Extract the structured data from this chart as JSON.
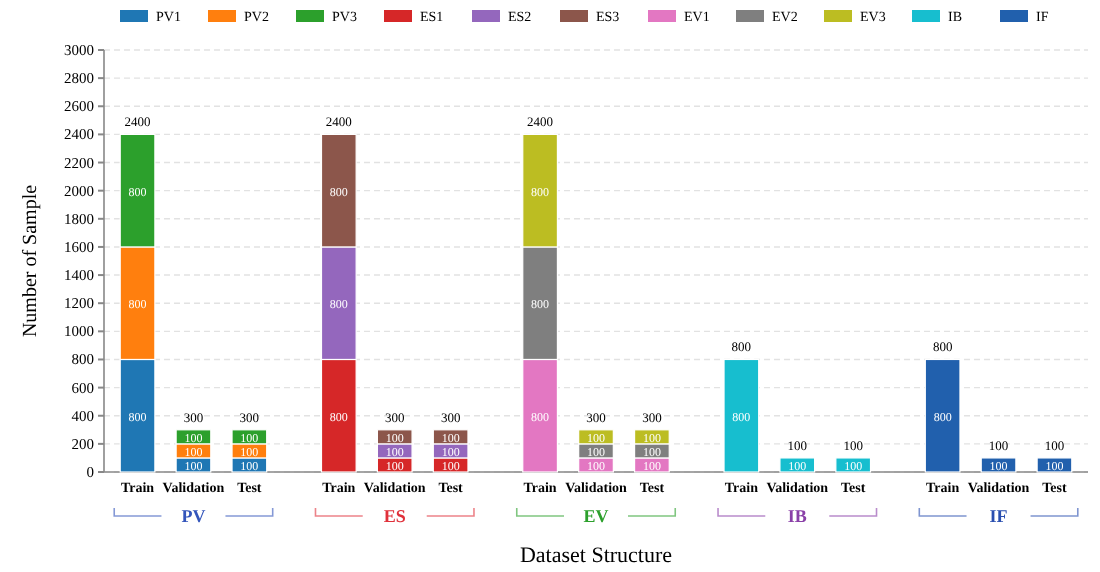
{
  "chart_data": {
    "type": "bar",
    "stacked": true,
    "xlabel": "Dataset Structure",
    "ylabel": "Number of Sample",
    "categories": [
      "Train",
      "Validation",
      "Test",
      "Train",
      "Validation",
      "Test",
      "Train",
      "Validation",
      "Test",
      "Train",
      "Validation",
      "Test",
      "Train",
      "Validation",
      "Test"
    ],
    "series": [
      {
        "name": "PV1",
        "color": "#1f77b4",
        "values": [
          800,
          100,
          100,
          null,
          null,
          null,
          null,
          null,
          null,
          null,
          null,
          null,
          null,
          null,
          null
        ]
      },
      {
        "name": "PV2",
        "color": "#ff7f0e",
        "values": [
          800,
          100,
          100,
          null,
          null,
          null,
          null,
          null,
          null,
          null,
          null,
          null,
          null,
          null,
          null
        ]
      },
      {
        "name": "PV3",
        "color": "#2ca02c",
        "values": [
          800,
          100,
          100,
          null,
          null,
          null,
          null,
          null,
          null,
          null,
          null,
          null,
          null,
          null,
          null
        ]
      },
      {
        "name": "ES1",
        "color": "#d62728",
        "values": [
          null,
          null,
          null,
          800,
          100,
          100,
          null,
          null,
          null,
          null,
          null,
          null,
          null,
          null,
          null
        ]
      },
      {
        "name": "ES2",
        "color": "#9467bd",
        "values": [
          null,
          null,
          null,
          800,
          100,
          100,
          null,
          null,
          null,
          null,
          null,
          null,
          null,
          null,
          null
        ]
      },
      {
        "name": "ES3",
        "color": "#8c564b",
        "values": [
          null,
          null,
          null,
          800,
          100,
          100,
          null,
          null,
          null,
          null,
          null,
          null,
          null,
          null,
          null
        ]
      },
      {
        "name": "EV1",
        "color": "#e377c2",
        "values": [
          null,
          null,
          null,
          null,
          null,
          null,
          800,
          100,
          100,
          null,
          null,
          null,
          null,
          null,
          null
        ]
      },
      {
        "name": "EV2",
        "color": "#7f7f7f",
        "values": [
          null,
          null,
          null,
          null,
          null,
          null,
          800,
          100,
          100,
          null,
          null,
          null,
          null,
          null,
          null
        ]
      },
      {
        "name": "EV3",
        "color": "#bcbd22",
        "values": [
          null,
          null,
          null,
          null,
          null,
          null,
          800,
          100,
          100,
          null,
          null,
          null,
          null,
          null,
          null
        ]
      },
      {
        "name": "IB",
        "color": "#17becf",
        "values": [
          null,
          null,
          null,
          null,
          null,
          null,
          null,
          null,
          null,
          800,
          100,
          100,
          null,
          null,
          null
        ]
      },
      {
        "name": "IF",
        "color": "#2160ad",
        "values": [
          null,
          null,
          null,
          null,
          null,
          null,
          null,
          null,
          null,
          null,
          null,
          null,
          800,
          100,
          100
        ]
      }
    ],
    "totals": [
      "2400",
      "300",
      "300",
      "2400",
      "300",
      "300",
      "2400",
      "300",
      "300",
      "800",
      "100",
      "100",
      "800",
      "100",
      "100"
    ],
    "annotations": [
      "PV",
      "ES",
      "EV",
      "IB",
      "IF"
    ],
    "data_labels": true,
    "ylim": [
      0,
      3000
    ],
    "yticks": [
      0,
      200,
      400,
      600,
      800,
      1000,
      1200,
      1400,
      1600,
      1800,
      2000,
      2200,
      2400,
      2600,
      2800,
      3000
    ],
    "grid": "y",
    "legend": "top"
  }
}
